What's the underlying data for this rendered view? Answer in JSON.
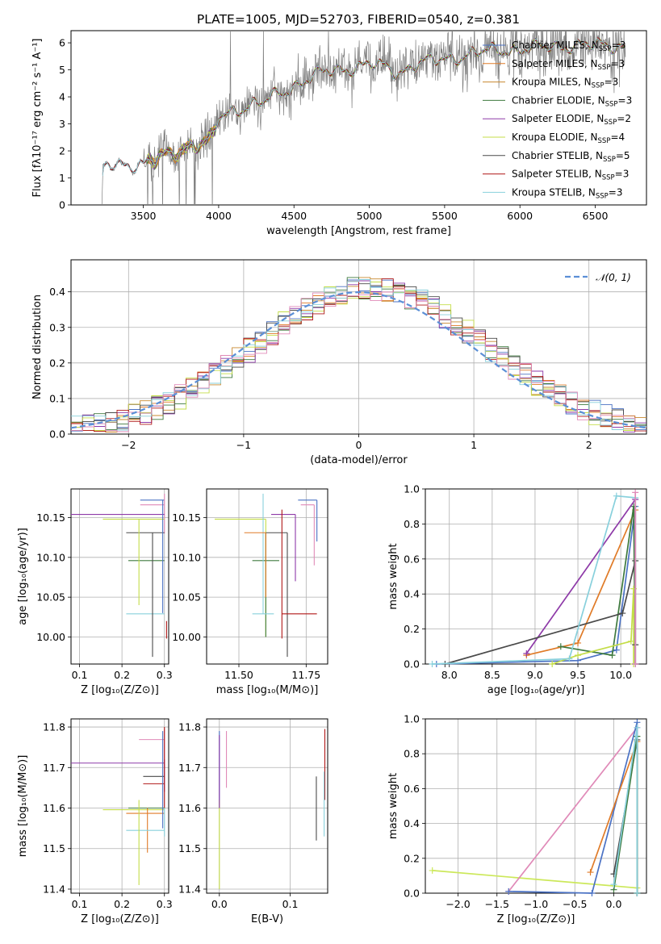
{
  "title": "PLATE=1005, MJD=52703, FIBERID=0540, z=0.381",
  "colors": {
    "Chabrier MILES": "#4b72c4",
    "Salpeter MILES": "#e07b28",
    "Kroupa MILES": "#c8882f",
    "Chabrier ELODIE": "#3e7a3e",
    "Salpeter ELODIE": "#8e3aa8",
    "Kroupa ELODIE": "#c4dd48",
    "Chabrier STELIB": "#4a4a4a",
    "Salpeter STELIB": "#b01818",
    "Kroupa STELIB": "#88d0dc",
    "Kroupa ELODIE thick": "#cce85a",
    "pink": "#e08ab8",
    "data": "#808080",
    "normal": "#5b8fd6"
  },
  "chart_data": [
    {
      "type": "line",
      "id": "spectrum",
      "xlabel": "wavelength [Angstrom, rest frame]",
      "ylabel": "Flux [fλ10⁻¹⁷ erg cm⁻² s⁻¹ A⁻¹]",
      "xlim": [
        3020,
        6840
      ],
      "ylim": [
        0,
        6.45
      ],
      "xticks": [
        "3500",
        "4000",
        "4500",
        "5000",
        "5500",
        "6000",
        "6500"
      ],
      "yticks": [
        "0",
        "1",
        "2",
        "3",
        "4",
        "5",
        "6"
      ],
      "legend": [
        {
          "label": "Chabrier MILES, N",
          "sub": "SSP",
          "n": "=3"
        },
        {
          "label": "Salpeter MILES, N",
          "sub": "SSP",
          "n": "=3"
        },
        {
          "label": "Kroupa MILES, N",
          "sub": "SSP",
          "n": "=3"
        },
        {
          "label": "Chabrier ELODIE, N",
          "sub": "SSP",
          "n": "=3"
        },
        {
          "label": "Salpeter ELODIE, N",
          "sub": "SSP",
          "n": "=2"
        },
        {
          "label": "Kroupa ELODIE, N",
          "sub": "SSP",
          "n": "=4"
        },
        {
          "label": "Chabrier STELIB, N",
          "sub": "SSP",
          "n": "=5"
        },
        {
          "label": "Salpeter STELIB, N",
          "sub": "SSP",
          "n": "=3"
        },
        {
          "label": "Kroupa STELIB, N",
          "sub": "SSP",
          "n": "=3"
        }
      ],
      "continuum": [
        [
          3225,
          0.0
        ],
        [
          3232,
          1.4
        ],
        [
          3300,
          1.45
        ],
        [
          3400,
          1.5
        ],
        [
          3500,
          1.55
        ],
        [
          3600,
          1.7
        ],
        [
          3700,
          1.9
        ],
        [
          3800,
          2.2
        ],
        [
          3900,
          2.3
        ],
        [
          3960,
          2.4
        ],
        [
          4000,
          3.2
        ],
        [
          4100,
          3.5
        ],
        [
          4200,
          3.7
        ],
        [
          4300,
          3.8
        ],
        [
          4400,
          4.1
        ],
        [
          4500,
          4.4
        ],
        [
          4600,
          4.7
        ],
        [
          4700,
          4.9
        ],
        [
          4800,
          5.0
        ],
        [
          4900,
          5.1
        ],
        [
          5000,
          5.2
        ],
        [
          5100,
          5.1
        ],
        [
          5200,
          4.9
        ],
        [
          5300,
          5.2
        ],
        [
          5400,
          5.3
        ],
        [
          5500,
          5.4
        ],
        [
          5600,
          5.5
        ],
        [
          5700,
          5.6
        ],
        [
          5800,
          5.7
        ],
        [
          5900,
          5.75
        ],
        [
          6000,
          5.75
        ],
        [
          6100,
          5.8
        ],
        [
          6200,
          5.85
        ],
        [
          6300,
          5.9
        ],
        [
          6400,
          5.9
        ],
        [
          6500,
          5.9
        ],
        [
          6600,
          5.9
        ],
        [
          6700,
          5.9
        ]
      ]
    },
    {
      "type": "histogram",
      "id": "residuals",
      "xlabel": "(data-model)/error",
      "ylabel": "Normed distribution",
      "xlim": [
        -2.5,
        2.5
      ],
      "ylim": [
        0,
        0.49
      ],
      "xticks": [
        "−2",
        "−1",
        "0",
        "1",
        "2"
      ],
      "yticks": [
        "0.0",
        "0.1",
        "0.2",
        "0.3",
        "0.4"
      ],
      "legend": "𝒩(0, 1)"
    },
    {
      "type": "scatter",
      "id": "age_vs_Z",
      "xlabel": "Z [log₁₀(Z/Z⊙)]",
      "ylabel": "age  [log₁₀(age/yr)]",
      "xlim": [
        0.08,
        0.31
      ],
      "ylim": [
        9.966,
        10.186
      ],
      "xticks": [
        "0.1",
        "0.2",
        "0.3"
      ],
      "yticks": [
        "10.00",
        "10.05",
        "10.10",
        "10.15"
      ],
      "errorbars": [
        {
          "s": "Chabrier MILES",
          "x": 0.3,
          "y": 10.172,
          "xerr": [
            0.243,
            0.3
          ],
          "yerr": [
            10.172,
            10.172
          ]
        },
        {
          "s": "pink",
          "x": 0.3,
          "y": 10.166,
          "xerr": [
            0.243,
            0.3
          ],
          "yerr": [
            10.13,
            10.18
          ]
        },
        {
          "s": "Salpeter ELODIE",
          "x": 0.3,
          "y": 10.154,
          "xerr": [
            0.08,
            0.3
          ],
          "yerr": [
            10.154,
            10.154
          ]
        },
        {
          "s": "Kroupa ELODIE",
          "x": 0.3,
          "y": 10.148,
          "xerr": [
            0.155,
            0.3
          ],
          "yerr": [
            10.148,
            10.148
          ]
        },
        {
          "s": "Chabrier STELIB",
          "x": 0.3,
          "y": 10.131,
          "xerr": [
            0.21,
            0.3
          ],
          "yerr": [
            10.131,
            10.131
          ]
        },
        {
          "s": "Chabrier ELODIE",
          "x": 0.3,
          "y": 10.096,
          "xerr": [
            0.215,
            0.3
          ],
          "yerr": [
            10.096,
            10.096
          ]
        },
        {
          "s": "Kroupa STELIB",
          "x": 0.3,
          "y": 10.029,
          "xerr": [
            0.21,
            0.3
          ],
          "yerr": [
            10.029,
            10.029
          ]
        },
        {
          "s": "Chabrier STELIB",
          "x": 0.272,
          "y": 10.1,
          "xerr": [
            0.272,
            0.272
          ],
          "yerr": [
            9.975,
            10.131
          ]
        },
        {
          "s": "Kroupa ELODIE",
          "x": 0.24,
          "y": 10.1,
          "xerr": [
            0.24,
            0.24
          ],
          "yerr": [
            10.04,
            10.148
          ]
        },
        {
          "s": "Salpeter STELIB",
          "x": 0.305,
          "y": 10.01,
          "xerr": [
            0.305,
            0.305
          ],
          "yerr": [
            9.998,
            10.02
          ]
        },
        {
          "s": "Chabrier MILES",
          "x": 0.296,
          "y": 10.1,
          "xerr": [
            0.296,
            0.296
          ],
          "yerr": [
            10.03,
            10.172
          ]
        }
      ]
    },
    {
      "type": "scatter",
      "id": "age_vs_mass",
      "xlabel": "mass [log₁₀(M/M⊙)]",
      "ylabel": "",
      "xlim": [
        11.38,
        11.83
      ],
      "ylim": [
        9.966,
        10.186
      ],
      "xticks": [
        "11.50",
        "11.75"
      ],
      "yticks": [
        "10.00",
        "10.05",
        "10.10",
        "10.15"
      ],
      "errorbars": [
        {
          "s": "Chabrier MILES",
          "x": 11.79,
          "y": 10.172,
          "xerr": [
            11.72,
            11.79
          ],
          "yerr": [
            10.12,
            10.172
          ]
        },
        {
          "s": "pink",
          "x": 11.78,
          "y": 10.166,
          "xerr": [
            11.73,
            11.78
          ],
          "yerr": [
            10.09,
            10.166
          ]
        },
        {
          "s": "Salpeter ELODIE",
          "x": 11.71,
          "y": 10.154,
          "xerr": [
            11.62,
            11.71
          ],
          "yerr": [
            10.07,
            10.154
          ]
        },
        {
          "s": "Kroupa ELODIE",
          "x": 11.6,
          "y": 10.148,
          "xerr": [
            11.41,
            11.6
          ],
          "yerr": [
            10.0,
            10.148
          ]
        },
        {
          "s": "Chabrier STELIB",
          "x": 11.68,
          "y": 10.131,
          "xerr": [
            11.6,
            11.68
          ],
          "yerr": [
            9.975,
            10.131
          ]
        },
        {
          "s": "Chabrier ELODIE",
          "x": 11.6,
          "y": 10.096,
          "xerr": [
            11.55,
            11.65
          ],
          "yerr": [
            10.0,
            10.131
          ]
        },
        {
          "s": "Salpeter STELIB",
          "x": 11.66,
          "y": 10.029,
          "xerr": [
            11.66,
            11.79
          ],
          "yerr": [
            9.998,
            10.16
          ]
        },
        {
          "s": "Kroupa STELIB",
          "x": 11.59,
          "y": 10.029,
          "xerr": [
            11.55,
            11.63
          ],
          "yerr": [
            10.029,
            10.18
          ]
        },
        {
          "s": "Salpeter MILES",
          "x": 11.6,
          "y": 10.131,
          "xerr": [
            11.52,
            11.6
          ],
          "yerr": [
            10.05,
            10.131
          ]
        }
      ]
    },
    {
      "type": "line",
      "id": "weight_vs_age",
      "xlabel": "age  [log₁₀(age/yr)]",
      "ylabel": "mass weight",
      "xlim": [
        7.72,
        10.3
      ],
      "ylim": [
        0,
        1.0
      ],
      "xticks": [
        "8.0",
        "8.5",
        "9.0",
        "9.5",
        "10.0"
      ],
      "yticks": [
        "0.0",
        "0.2",
        "0.4",
        "0.6",
        "0.8",
        "1.0"
      ],
      "series": [
        {
          "s": "Chabrier MILES",
          "x": [
            7.85,
            9.5,
            9.95,
            10.17,
            10.17
          ],
          "y": [
            0.0,
            0.02,
            0.08,
            0.9,
            0.0
          ]
        },
        {
          "s": "Salpeter MILES",
          "x": [
            8.9,
            9.5,
            10.17,
            10.17
          ],
          "y": [
            0.05,
            0.12,
            0.88,
            0.0
          ]
        },
        {
          "s": "Chabrier ELODIE",
          "x": [
            9.3,
            9.9,
            10.15,
            10.17
          ],
          "y": [
            0.1,
            0.05,
            0.9,
            0.0
          ]
        },
        {
          "s": "Salpeter ELODIE",
          "x": [
            8.9,
            10.17,
            10.17
          ],
          "y": [
            0.06,
            0.94,
            0.0
          ]
        },
        {
          "s": "Kroupa ELODIE",
          "x": [
            9.2,
            9.5,
            10.12,
            10.15,
            10.15
          ],
          "y": [
            0.0,
            0.05,
            0.13,
            0.43,
            0.0
          ]
        },
        {
          "s": "Chabrier STELIB",
          "x": [
            7.95,
            10.02,
            10.17,
            10.17
          ],
          "y": [
            0.0,
            0.29,
            0.59,
            0.11
          ]
        },
        {
          "s": "Kroupa STELIB",
          "x": [
            7.8,
            9.4,
            9.95,
            10.17,
            10.17
          ],
          "y": [
            0.0,
            0.03,
            0.96,
            0.95,
            0.0
          ]
        },
        {
          "s": "pink",
          "x": [
            10.17,
            10.17
          ],
          "y": [
            0.0,
            0.98
          ]
        }
      ]
    },
    {
      "type": "scatter",
      "id": "mass_vs_Z",
      "xlabel": "Z [log₁₀(Z/Z⊙)]",
      "ylabel": "mass [log₁₀(M/M⊙)]",
      "xlim": [
        0.08,
        0.31
      ],
      "ylim": [
        11.39,
        11.82
      ],
      "xticks": [
        "0.1",
        "0.2",
        "0.3"
      ],
      "yticks": [
        "11.4",
        "11.5",
        "11.6",
        "11.7",
        "11.8"
      ],
      "errorbars": [
        {
          "s": "pink",
          "x": 0.3,
          "y": 11.769,
          "xerr": [
            0.24,
            0.3
          ],
          "yerr": [
            11.7,
            11.795
          ]
        },
        {
          "s": "Salpeter ELODIE",
          "x": 0.3,
          "y": 11.711,
          "xerr": [
            0.08,
            0.3
          ],
          "yerr": [
            11.64,
            11.72
          ]
        },
        {
          "s": "Chabrier STELIB",
          "x": 0.3,
          "y": 11.678,
          "xerr": [
            0.25,
            0.3
          ],
          "yerr": [
            11.678,
            11.678
          ]
        },
        {
          "s": "Salpeter STELIB",
          "x": 0.3,
          "y": 11.66,
          "xerr": [
            0.25,
            0.3
          ],
          "yerr": [
            11.6,
            11.8
          ]
        },
        {
          "s": "Kroupa ELODIE",
          "x": 0.3,
          "y": 11.596,
          "xerr": [
            0.155,
            0.3
          ],
          "yerr": [
            11.596,
            11.596
          ]
        },
        {
          "s": "Chabrier ELODIE",
          "x": 0.3,
          "y": 11.6,
          "xerr": [
            0.215,
            0.3
          ],
          "yerr": [
            11.6,
            11.6
          ]
        },
        {
          "s": "Salpeter MILES",
          "x": 0.26,
          "y": 11.587,
          "xerr": [
            0.21,
            0.3
          ],
          "yerr": [
            11.49,
            11.6
          ]
        },
        {
          "s": "Kroupa STELIB",
          "x": 0.3,
          "y": 11.545,
          "xerr": [
            0.21,
            0.3
          ],
          "yerr": [
            11.53,
            11.6
          ]
        },
        {
          "s": "Kroupa ELODIE",
          "x": 0.24,
          "y": 11.5,
          "xerr": [
            0.24,
            0.24
          ],
          "yerr": [
            11.41,
            11.62
          ]
        },
        {
          "s": "Chabrier MILES",
          "x": 0.296,
          "y": 11.7,
          "xerr": [
            0.296,
            0.296
          ],
          "yerr": [
            11.55,
            11.79
          ]
        }
      ]
    },
    {
      "type": "scatter",
      "id": "mass_vs_EBV",
      "xlabel": "E(B-V)",
      "ylabel": "",
      "xlim": [
        -0.018,
        0.153
      ],
      "ylim": [
        11.39,
        11.82
      ],
      "xticks": [
        "0.0",
        "0.1"
      ],
      "yticks": [
        "11.4",
        "11.5",
        "11.6",
        "11.7",
        "11.8"
      ],
      "errorbars": [
        {
          "s": "Chabrier MILES",
          "x": 0.0,
          "y": 11.7,
          "xerr": [
            0.0,
            0.0
          ],
          "yerr": [
            11.6,
            11.79
          ]
        },
        {
          "s": "Kroupa ELODIE",
          "x": 0.0,
          "y": 11.5,
          "xerr": [
            0.0,
            0.0
          ],
          "yerr": [
            11.4,
            11.62
          ]
        },
        {
          "s": "Salpeter ELODIE",
          "x": 0.0,
          "y": 11.7,
          "xerr": [
            0.0,
            0.0
          ],
          "yerr": [
            11.6,
            11.78
          ]
        },
        {
          "s": "pink",
          "x": 0.01,
          "y": 11.72,
          "xerr": [
            0.01,
            0.01
          ],
          "yerr": [
            11.65,
            11.79
          ]
        },
        {
          "s": "Chabrier STELIB",
          "x": 0.137,
          "y": 11.6,
          "xerr": [
            0.137,
            0.137
          ],
          "yerr": [
            11.52,
            11.678
          ]
        },
        {
          "s": "Salpeter STELIB",
          "x": 0.149,
          "y": 11.7,
          "xerr": [
            0.149,
            0.149
          ],
          "yerr": [
            11.62,
            11.795
          ]
        },
        {
          "s": "Kroupa STELIB",
          "x": 0.148,
          "y": 11.6,
          "xerr": [
            0.148,
            0.148
          ],
          "yerr": [
            11.53,
            11.69
          ]
        }
      ]
    },
    {
      "type": "line",
      "id": "weight_vs_Z",
      "xlabel": "Z [log₁₀(Z/Z⊙)]",
      "ylabel": "mass weight",
      "xlim": [
        -2.42,
        0.42
      ],
      "ylim": [
        0,
        1.0
      ],
      "xticks": [
        "−2.0",
        "−1.5",
        "−1.0",
        "−0.5",
        "0.0"
      ],
      "yticks": [
        "0.0",
        "0.2",
        "0.4",
        "0.6",
        "0.8",
        "1.0"
      ],
      "series": [
        {
          "s": "Kroupa ELODIE thick",
          "x": [
            -2.33,
            0.3,
            0.3
          ],
          "y": [
            0.13,
            0.03,
            0.0
          ]
        },
        {
          "s": "pink",
          "x": [
            -1.35,
            0.3,
            0.3
          ],
          "y": [
            0.01,
            0.95,
            0.0
          ]
        },
        {
          "s": "Chabrier MILES",
          "x": [
            -1.35,
            -0.28,
            0.3,
            0.3
          ],
          "y": [
            0.01,
            0.0,
            0.98,
            0.0
          ]
        },
        {
          "s": "Salpeter MILES",
          "x": [
            -0.3,
            0.3,
            0.3
          ],
          "y": [
            0.12,
            0.87,
            0.0
          ]
        },
        {
          "s": "Chabrier STELIB",
          "x": [
            0.0,
            0.3,
            0.3
          ],
          "y": [
            0.11,
            0.88,
            0.0
          ]
        },
        {
          "s": "Chabrier ELODIE",
          "x": [
            0.0,
            0.3,
            0.3
          ],
          "y": [
            0.02,
            0.9,
            0.0
          ]
        },
        {
          "s": "Kroupa STELIB",
          "x": [
            0.0,
            0.3,
            0.3
          ],
          "y": [
            0.05,
            0.95,
            0.0
          ]
        }
      ]
    }
  ]
}
